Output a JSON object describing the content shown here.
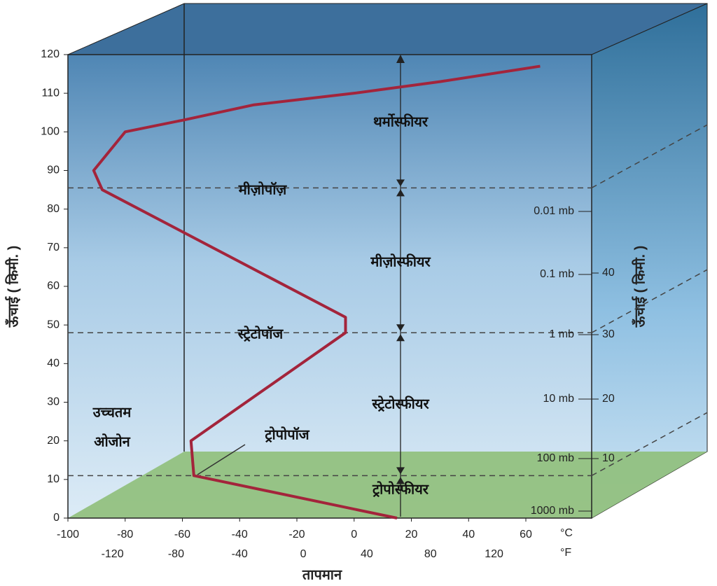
{
  "chart_data": {
    "type": "line",
    "x": [
      15,
      -56,
      -57,
      -3,
      -3,
      -88,
      -91,
      -80,
      -60,
      -35,
      0,
      30,
      65
    ],
    "values": [
      0,
      11,
      20,
      48,
      52,
      85,
      90,
      100,
      103,
      107,
      110,
      113,
      117
    ],
    "color": "#a3243b",
    "y_label": "ऊँचाई ( किमी. )",
    "x_label": "तापमान",
    "xlim": [
      -100,
      83
    ],
    "xticks": [
      -100,
      -80,
      -60,
      -40,
      -20,
      0,
      20,
      40,
      60
    ],
    "x_unit": "°C",
    "x2lim": [
      -148,
      181.4
    ],
    "x2ticks": [
      -120,
      -80,
      -40,
      0,
      40,
      80,
      120
    ],
    "x2_unit": "°F",
    "ylim": [
      0,
      120
    ],
    "yticks": [
      0,
      10,
      20,
      30,
      40,
      50,
      60,
      70,
      80,
      90,
      100,
      110,
      120
    ],
    "boundary_lines": [
      85.5,
      48,
      11
    ],
    "annotations": [
      "थर्मोस्फीयर",
      "मीज़ोपॉज़",
      "मीज़ोस्फीयर",
      "स्ट्रेटोपॉज",
      "स्ट्रेटोस्फीयर",
      "ट्रोपोपॉज",
      "ट्रोपोस्फीयर",
      "उच्चतम",
      "ओजोन"
    ],
    "pressure_labels": [
      "0.01 mb",
      "0.1 mb",
      "1 mb",
      "10 mb",
      "100 mb",
      "1000 mb"
    ],
    "right_labels": [
      40,
      30,
      20,
      10
    ],
    "right_axis_label": "ऊँचाई ( किमी. )"
  }
}
